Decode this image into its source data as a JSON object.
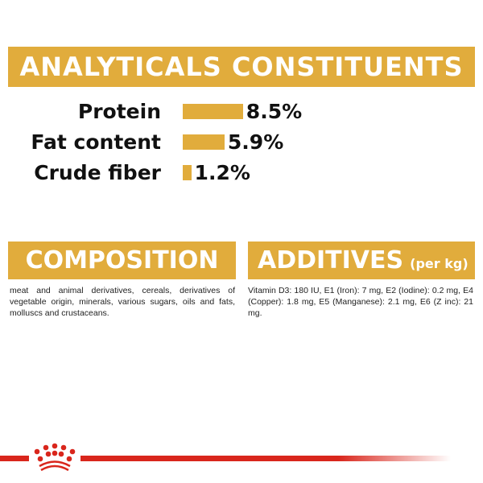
{
  "analyticals": {
    "title": "ANALYTICALS CONSTITUENTS",
    "items": [
      {
        "label": "Protein",
        "value": "8.5%",
        "percent": 8.5
      },
      {
        "label": "Fat content",
        "value": "5.9%",
        "percent": 5.9
      },
      {
        "label": "Crude fiber",
        "value": "1.2%",
        "percent": 1.2
      }
    ]
  },
  "composition": {
    "title": "COMPOSITION",
    "text": "meat and animal derivatives, cereals, derivatives of vegetable origin, minerals, various sugars, oils and fats, molluscs and crustaceans."
  },
  "additives": {
    "title": "ADDITIVES",
    "subtitle": "(per kg)",
    "text": "Vitamin D3: 180 IU, E1 (Iron): 7 mg, E2 (Iodine): 0.2 mg, E4 (Copper): 1.8 mg, E5 (Manganese): 2.1 mg, E6 (Z inc): 21 mg."
  },
  "colors": {
    "accent": "#e1ac3c",
    "brand_red": "#d9261c"
  },
  "logo": {
    "icon": "royal-canin-crown-icon"
  }
}
